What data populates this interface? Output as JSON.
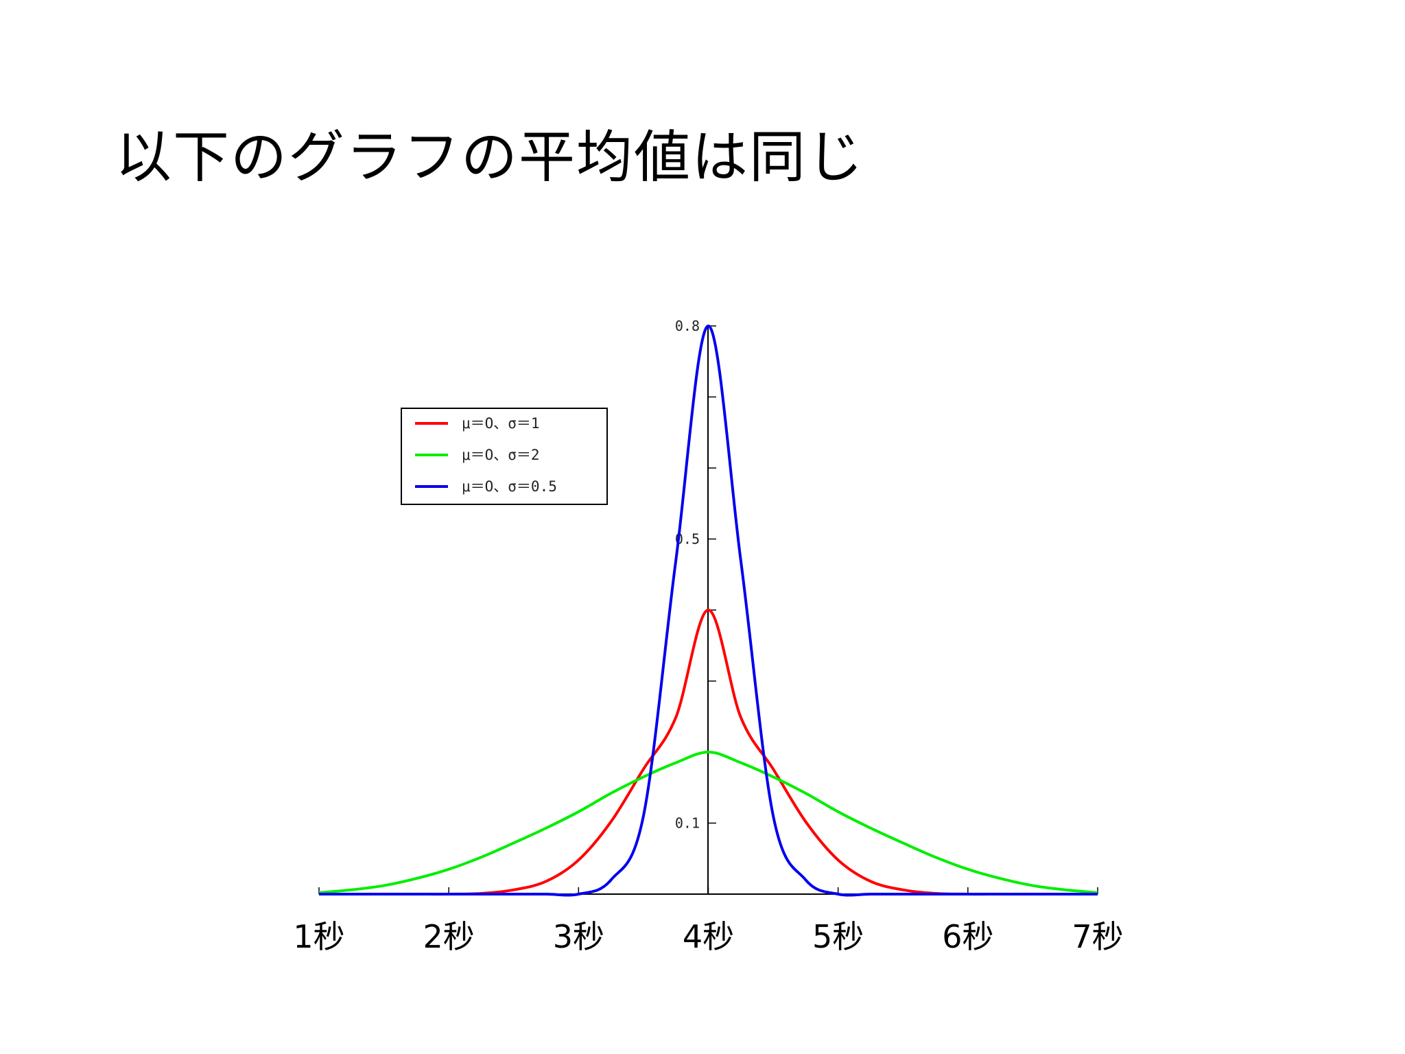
{
  "slide": {
    "title": "以下のグラフの平均値は同じ"
  },
  "chart_data": {
    "type": "line",
    "x_range": [
      1,
      7
    ],
    "y_range": [
      0,
      0.8
    ],
    "y_ticks": [
      {
        "value": 0.1,
        "label": "0.1"
      },
      {
        "value": 0.2,
        "label": ""
      },
      {
        "value": 0.3,
        "label": ""
      },
      {
        "value": 0.4,
        "label": ""
      },
      {
        "value": 0.5,
        "label": "0.5"
      },
      {
        "value": 0.6,
        "label": ""
      },
      {
        "value": 0.7,
        "label": ""
      },
      {
        "value": 0.8,
        "label": "0.8"
      }
    ],
    "x_ticks": [
      {
        "value": 1,
        "label": "1秒"
      },
      {
        "value": 2,
        "label": "2秒"
      },
      {
        "value": 3,
        "label": "3秒"
      },
      {
        "value": 4,
        "label": "4秒"
      },
      {
        "value": 5,
        "label": "5秒"
      },
      {
        "value": 6,
        "label": "6秒"
      },
      {
        "value": 7,
        "label": "7秒"
      }
    ],
    "legend_position": "upper-left",
    "series": [
      {
        "name": "μ＝O、σ＝1",
        "color": "#ff0000",
        "x": [
          1,
          1.25,
          1.5,
          1.75,
          2,
          2.25,
          2.5,
          2.75,
          3,
          3.25,
          3.5,
          3.75,
          4,
          4.25,
          4.5,
          4.75,
          5,
          5.25,
          5.5,
          5.75,
          6,
          6.25,
          6.5,
          6.75,
          7
        ],
        "y": [
          0.0,
          0.0,
          0.0,
          0.0,
          0.0,
          0.001,
          0.006,
          0.018,
          0.048,
          0.102,
          0.176,
          0.249,
          0.4,
          0.249,
          0.176,
          0.102,
          0.048,
          0.018,
          0.006,
          0.001,
          0.0,
          0.0,
          0.0,
          0.0,
          0.0
        ]
      },
      {
        "name": "μ＝O、σ＝2",
        "color": "#00ee00",
        "x": [
          1,
          1.25,
          1.5,
          1.75,
          2,
          2.25,
          2.5,
          2.75,
          3,
          3.25,
          3.5,
          3.75,
          4,
          4.25,
          4.5,
          4.75,
          5,
          5.25,
          5.5,
          5.75,
          6,
          6.25,
          6.5,
          6.75,
          7
        ],
        "y": [
          0.002,
          0.006,
          0.012,
          0.022,
          0.035,
          0.052,
          0.072,
          0.093,
          0.116,
          0.142,
          0.165,
          0.185,
          0.2,
          0.185,
          0.165,
          0.142,
          0.116,
          0.093,
          0.072,
          0.052,
          0.035,
          0.022,
          0.012,
          0.006,
          0.002
        ]
      },
      {
        "name": "μ＝O、σ＝0.5",
        "color": "#0000ee",
        "x": [
          1,
          1.25,
          1.5,
          1.75,
          2,
          2.25,
          2.5,
          2.75,
          3,
          3.25,
          3.5,
          3.75,
          4,
          4.25,
          4.5,
          4.75,
          5,
          5.25,
          5.5,
          5.75,
          6,
          6.25,
          6.5,
          6.75,
          7
        ],
        "y": [
          0.0,
          0.0,
          0.0,
          0.0,
          0.0,
          0.0,
          0.0,
          0.0,
          0.0,
          0.02,
          0.11,
          0.47,
          0.8,
          0.47,
          0.11,
          0.02,
          0.0,
          0.0,
          0.0,
          0.0,
          0.0,
          0.0,
          0.0,
          0.0,
          0.0
        ]
      }
    ]
  }
}
